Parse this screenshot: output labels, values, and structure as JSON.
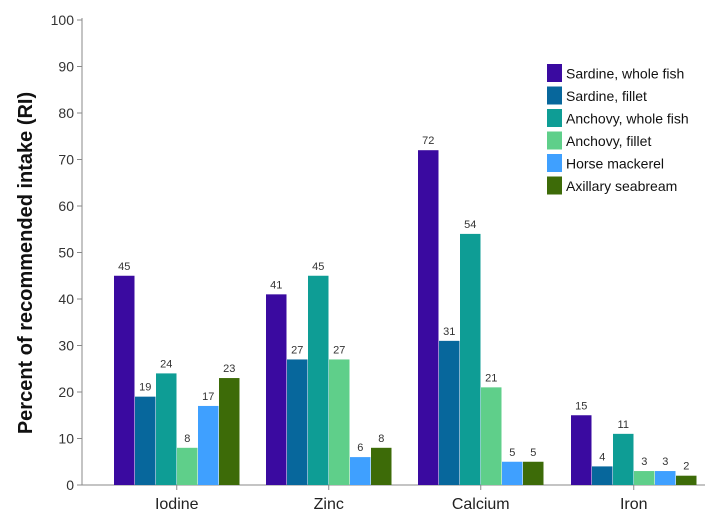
{
  "chart_data": {
    "type": "bar",
    "title": "",
    "xlabel": "",
    "ylabel": "Percent of recommended intake (RI)",
    "ylim": [
      0,
      100
    ],
    "yticks": [
      0,
      10,
      20,
      30,
      40,
      50,
      60,
      70,
      80,
      90,
      100
    ],
    "grid": false,
    "legend_position": "top-right",
    "categories": [
      "Iodine",
      "Zinc",
      "Calcium",
      "Iron"
    ],
    "series": [
      {
        "name": "Sardine, whole fish",
        "color": "#3a0aa0",
        "values": [
          45,
          41,
          72,
          15
        ]
      },
      {
        "name": "Sardine, fillet",
        "color": "#07679c",
        "values": [
          19,
          27,
          31,
          4
        ]
      },
      {
        "name": "Anchovy, whole fish",
        "color": "#0e9d95",
        "values": [
          24,
          45,
          54,
          11
        ]
      },
      {
        "name": "Anchovy, fillet",
        "color": "#5fcf8a",
        "values": [
          8,
          27,
          21,
          3
        ]
      },
      {
        "name": "Horse mackerel",
        "color": "#3fa0ff",
        "values": [
          17,
          6,
          5,
          3
        ]
      },
      {
        "name": "Axillary seabream",
        "color": "#3d6b08",
        "values": [
          23,
          8,
          5,
          2
        ]
      }
    ]
  }
}
